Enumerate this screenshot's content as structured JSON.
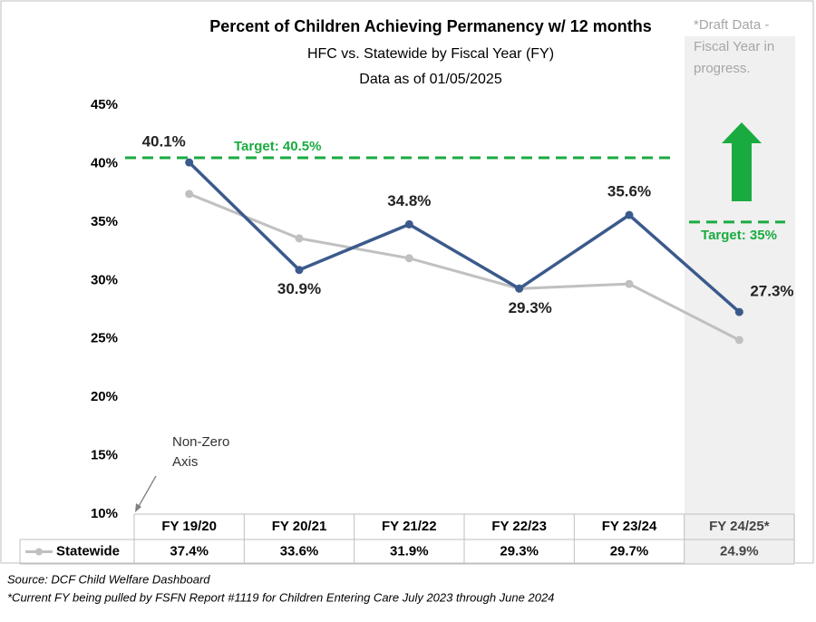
{
  "chart_data": {
    "type": "line",
    "title": "Percent of Children Achieving Permanency w/ 12 months",
    "subtitle": "HFC vs. Statewide by Fiscal Year (FY)",
    "date_note": "Data as of 01/05/2025",
    "categories": [
      "FY 19/20",
      "FY 20/21",
      "FY 21/22",
      "FY 22/23",
      "FY 23/24",
      "FY 24/25*"
    ],
    "series": [
      {
        "color": "#3b5a8c",
        "values": [
          40.1,
          30.9,
          34.8,
          29.3,
          35.6,
          27.3
        ],
        "value_labels": [
          "40.1%",
          "30.9%",
          "34.8%",
          "29.3%",
          "35.6%",
          "27.3%"
        ]
      },
      {
        "name": "Statewide",
        "color": "#c0c0c0",
        "values": [
          37.4,
          33.6,
          31.9,
          29.3,
          29.7,
          24.9
        ],
        "value_labels": [
          "37.4%",
          "33.6%",
          "31.9%",
          "29.3%",
          "29.7%",
          "24.9%"
        ]
      }
    ],
    "ylim": [
      10,
      45
    ],
    "yticks": [
      {
        "value": 10,
        "label": "10%"
      },
      {
        "value": 15,
        "label": "15%"
      },
      {
        "value": 20,
        "label": "20%"
      },
      {
        "value": 25,
        "label": "25%"
      },
      {
        "value": 30,
        "label": "30%"
      },
      {
        "value": 35,
        "label": "35%"
      },
      {
        "value": 40,
        "label": "40%"
      },
      {
        "value": 45,
        "label": "45%"
      }
    ],
    "targets": [
      {
        "label": "Target: 40.5%",
        "value": 40.5,
        "color": "#1aab40"
      },
      {
        "label": "Target: 35%",
        "value": 35,
        "color": "#1aab40"
      }
    ],
    "draft_note": [
      "*Draft Data -",
      "Fiscal Year in",
      "progress."
    ],
    "axis_note": [
      "Non-Zero",
      "Axis"
    ],
    "footnotes": [
      "Source: DCF Child Welfare Dashboard",
      "*Current FY being pulled by FSFN Report #1119 for Children Entering Care July 2023 through June 2024"
    ]
  }
}
